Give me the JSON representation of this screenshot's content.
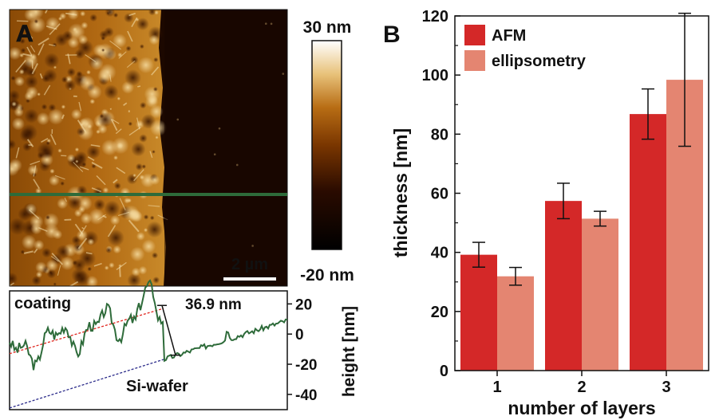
{
  "panel_a": {
    "label": "A",
    "scale_bar": "2 µm",
    "colorbar": {
      "max_label": "30 nm",
      "min_label": "-20 nm"
    },
    "profile": {
      "coating_label": "coating",
      "substrate_label": "Si-wafer",
      "step_label": "36.9 nm",
      "axis_label": "height [nm]",
      "ticks": [
        "20",
        "0",
        "-20",
        "-40"
      ],
      "ylim": [
        -48,
        26
      ],
      "colors": {
        "profile": "#2e6b3a",
        "coating": "#e0261f",
        "substrate": "#2a2a8a"
      }
    }
  },
  "chart_data": {
    "type": "bar",
    "panel_label": "B",
    "categories": [
      "1",
      "2",
      "3"
    ],
    "series": [
      {
        "name": "AFM",
        "values": [
          39.2,
          57.4,
          86.8
        ],
        "errors": [
          4.2,
          6.0,
          8.5
        ],
        "color": "#d42828"
      },
      {
        "name": "ellipsometry",
        "values": [
          31.9,
          51.4,
          98.4
        ],
        "errors": [
          3.0,
          2.5,
          22.5
        ],
        "color": "#e48571"
      }
    ],
    "xlabel": "number of layers",
    "ylabel": "thickness [nm]",
    "ylim": [
      0,
      120
    ],
    "yticks": [
      0,
      20,
      40,
      60,
      80,
      100,
      120
    ],
    "legend_position": "top-left",
    "grid": false
  }
}
